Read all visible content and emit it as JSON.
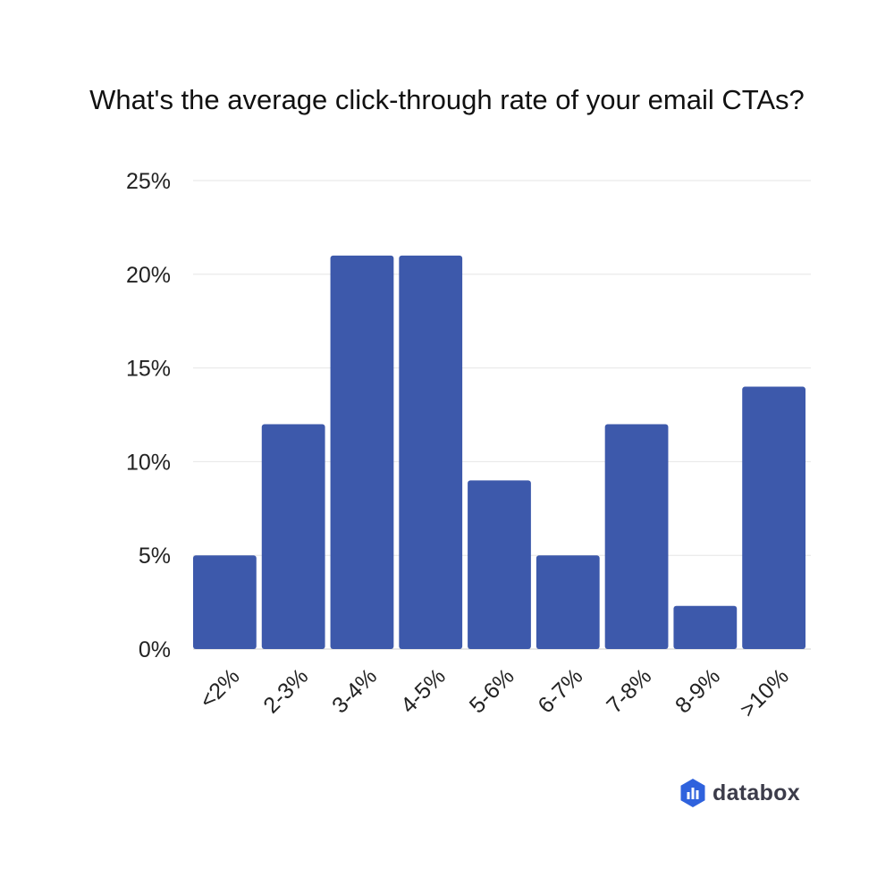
{
  "chart_data": {
    "type": "bar",
    "title": "What's the average click-through rate of your email CTAs?",
    "categories": [
      "<2%",
      "2-3%",
      "3-4%",
      "4-5%",
      "5-6%",
      "6-7%",
      "7-8%",
      "8-9%",
      ">10%"
    ],
    "values": [
      5,
      12,
      21,
      21,
      9,
      5,
      12,
      2.3,
      14
    ],
    "value_unit": "%",
    "xlabel": "",
    "ylabel": "",
    "ylim": [
      0,
      25
    ],
    "yticks": [
      0,
      5,
      10,
      15,
      20,
      25
    ],
    "ytick_labels": [
      "0%",
      "5%",
      "10%",
      "15%",
      "20%",
      "25%"
    ],
    "grid": true,
    "legend": "none",
    "bar_color": "#3d59ab",
    "grid_color": "#e6e6e6"
  },
  "branding": {
    "name": "databox",
    "logo_icon": "databox-logo-icon",
    "logo_color": "#2f62dd"
  }
}
